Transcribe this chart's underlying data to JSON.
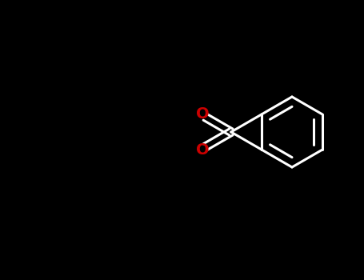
{
  "bg_color": "#000000",
  "bond_color": "#ffffff",
  "N_color": "#1a1aaa",
  "O_color": "#cc0000",
  "lw": 2.2,
  "fs": 14,
  "fig_width": 4.55,
  "fig_height": 3.5,
  "dpi": 100,
  "xlim": [
    0,
    455
  ],
  "ylim": [
    0,
    350
  ]
}
